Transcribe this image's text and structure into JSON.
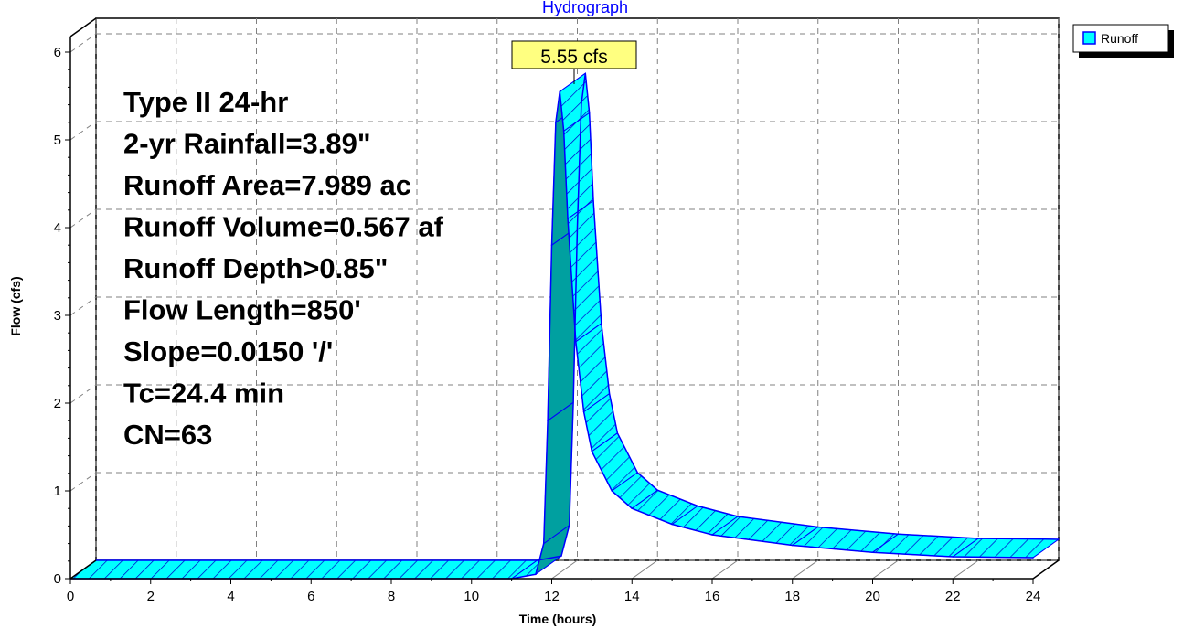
{
  "title": "Hydrograph",
  "legend": {
    "label": "Runoff"
  },
  "peak_label": "5.55 cfs",
  "info_lines": [
    "Type II 24-hr",
    "2-yr Rainfall=3.89\"",
    "Runoff Area=7.989 ac",
    "Runoff Volume=0.567 af",
    "Runoff Depth>0.85\"",
    "Flow Length=850'",
    "Slope=0.0150 '/'",
    "Tc=24.4 min",
    "CN=63"
  ],
  "colors": {
    "series_fill": "#00ffff",
    "series_dark": "#00a0a0",
    "series_stroke": "#0000ff",
    "hatch": "#0000cc",
    "title": "#0000ff",
    "peak_label_bg": "#ffff80",
    "grid": "#808080"
  },
  "chart_data": {
    "type": "area",
    "title": "Hydrograph",
    "xlabel": "Time  (hours)",
    "ylabel": "Flow  (cfs)",
    "xlim": [
      0,
      24
    ],
    "ylim": [
      0,
      6
    ],
    "x_ticks": [
      0,
      2,
      4,
      6,
      8,
      10,
      12,
      14,
      16,
      18,
      20,
      22,
      24
    ],
    "y_ticks": [
      0,
      1,
      2,
      3,
      4,
      5,
      6
    ],
    "grid": true,
    "legend_position": "top-right",
    "series": [
      {
        "name": "Runoff",
        "x": [
          0,
          11.0,
          11.6,
          11.8,
          11.9,
          12.0,
          12.1,
          12.2,
          12.3,
          12.4,
          12.6,
          12.8,
          13.0,
          13.5,
          14,
          15,
          16,
          18,
          20,
          22,
          24
        ],
        "y": [
          0,
          0,
          0.05,
          0.4,
          1.8,
          3.8,
          5.2,
          5.55,
          5.1,
          4.1,
          2.7,
          1.9,
          1.45,
          1.0,
          0.8,
          0.62,
          0.5,
          0.38,
          0.3,
          0.25,
          0.24
        ]
      }
    ],
    "annotations": [
      {
        "text": "5.55 cfs",
        "x": 12.2,
        "y": 5.55
      }
    ]
  }
}
